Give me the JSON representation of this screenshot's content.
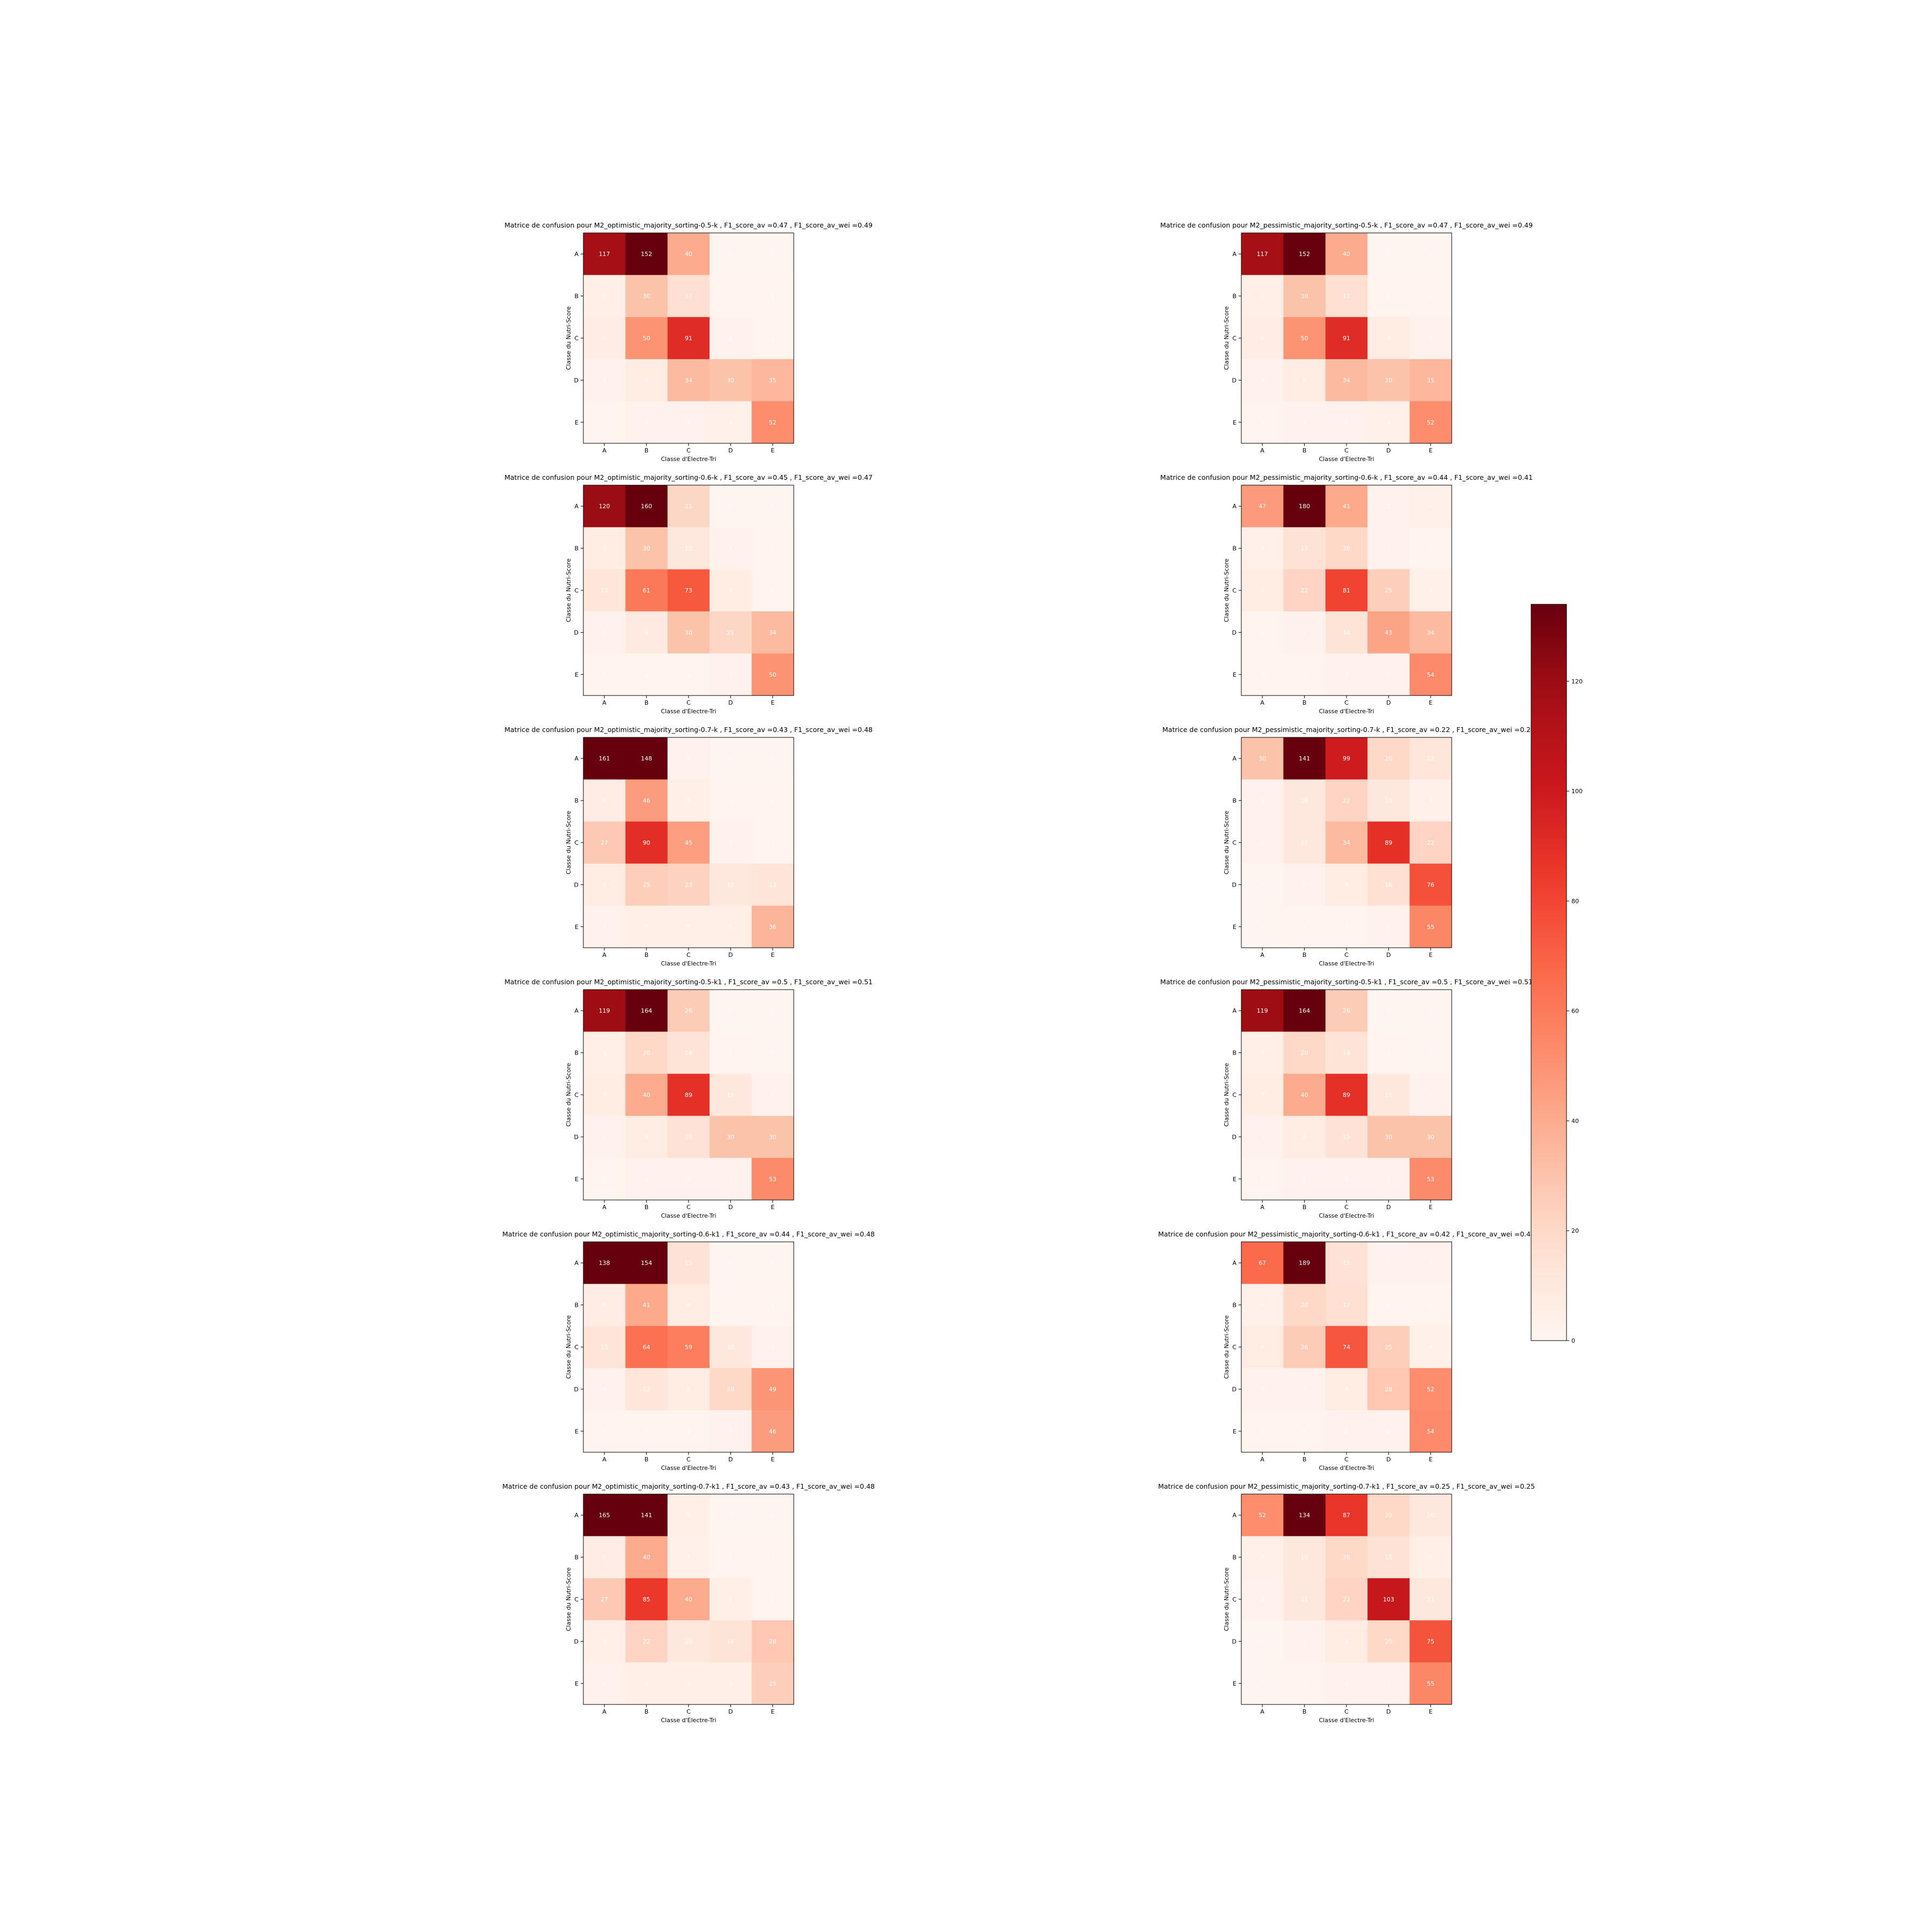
{
  "colorbar": {
    "cmap": "Reds",
    "vmin": 0,
    "vmax": 134,
    "ticks": [
      "0",
      "20",
      "40",
      "60",
      "80",
      "100",
      "120"
    ],
    "tick_values": [
      0,
      20,
      40,
      60,
      80,
      100,
      120
    ]
  },
  "chart_data": [
    {
      "type": "heatmap",
      "title": "Matrice de confusion pour M2_optimistic_majority_sorting-0.5-k , F1_score_av =0.47 , F1_score_av_wei =0.49",
      "xlabel": "Classe d'Electre-Tri",
      "ylabel": "Classe du Nutri-Score",
      "x_categories": [
        "A",
        "B",
        "C",
        "D",
        "E"
      ],
      "y_categories": [
        "A",
        "B",
        "C",
        "D",
        "E"
      ],
      "values": [
        [
          117,
          152,
          40,
          0,
          0
        ],
        [
          5,
          30,
          17,
          1,
          1
        ],
        [
          6,
          50,
          91,
          2,
          1
        ],
        [
          2,
          8,
          34,
          30,
          35
        ],
        [
          1,
          2,
          2,
          4,
          52
        ]
      ]
    },
    {
      "type": "heatmap",
      "title": "Matrice de confusion pour M2_pessimistic_majority_sorting-0.5-k , F1_score_av =0.47 , F1_score_av_wei =0.49",
      "xlabel": "Classe d'Electre-Tri",
      "ylabel": "Classe du Nutri-Score",
      "x_categories": [
        "A",
        "B",
        "C",
        "D",
        "E"
      ],
      "y_categories": [
        "A",
        "B",
        "C",
        "D",
        "E"
      ],
      "values": [
        [
          117,
          152,
          40,
          0,
          0
        ],
        [
          5,
          30,
          17,
          1,
          1
        ],
        [
          6,
          50,
          91,
          8,
          3
        ],
        [
          2,
          8,
          34,
          30,
          35
        ],
        [
          1,
          2,
          2,
          4,
          52
        ]
      ]
    },
    {
      "type": "heatmap",
      "title": "Matrice de confusion pour M2_optimistic_majority_sorting-0.6-k , F1_score_av =0.45 , F1_score_av_wei =0.47",
      "xlabel": "Classe d'Electre-Tri",
      "ylabel": "Classe du Nutri-Score",
      "x_categories": [
        "A",
        "B",
        "C",
        "D",
        "E"
      ],
      "y_categories": [
        "A",
        "B",
        "C",
        "D",
        "E"
      ],
      "values": [
        [
          120,
          160,
          21,
          0,
          0
        ],
        [
          7,
          30,
          10,
          2,
          1
        ],
        [
          12,
          61,
          73,
          7,
          1
        ],
        [
          2,
          9,
          30,
          21,
          34
        ],
        [
          1,
          1,
          1,
          3,
          50
        ]
      ]
    },
    {
      "type": "heatmap",
      "title": "Matrice de confusion pour M2_pessimistic_majority_sorting-0.6-k , F1_score_av =0.44 , F1_score_av_wei =0.41",
      "xlabel": "Classe d'Electre-Tri",
      "ylabel": "Classe du Nutri-Score",
      "x_categories": [
        "A",
        "B",
        "C",
        "D",
        "E"
      ],
      "y_categories": [
        "A",
        "B",
        "C",
        "D",
        "E"
      ],
      "values": [
        [
          47,
          180,
          41,
          2,
          4
        ],
        [
          4,
          15,
          20,
          2,
          1
        ],
        [
          7,
          22,
          81,
          25,
          4
        ],
        [
          1,
          2,
          14,
          43,
          34
        ],
        [
          1,
          1,
          2,
          2,
          54
        ]
      ]
    },
    {
      "type": "heatmap",
      "title": "Matrice de confusion pour M2_optimistic_majority_sorting-0.7-k , F1_score_av =0.43 , F1_score_av_wei =0.48",
      "xlabel": "Classe d'Electre-Tri",
      "ylabel": "Classe du Nutri-Score",
      "x_categories": [
        "A",
        "B",
        "C",
        "D",
        "E"
      ],
      "y_categories": [
        "A",
        "B",
        "C",
        "D",
        "E"
      ],
      "values": [
        [
          161,
          148,
          2,
          0,
          0
        ],
        [
          6,
          46,
          5,
          1,
          1
        ],
        [
          27,
          90,
          45,
          2,
          1
        ],
        [
          8,
          25,
          23,
          10,
          13
        ],
        [
          3,
          5,
          5,
          5,
          36
        ]
      ]
    },
    {
      "type": "heatmap",
      "title": "Matrice de confusion pour M2_pessimistic_majority_sorting-0.7-k , F1_score_av =0.22 , F1_score_av_wei =0.2",
      "xlabel": "Classe d'Electre-Tri",
      "ylabel": "Classe du Nutri-Score",
      "x_categories": [
        "A",
        "B",
        "C",
        "D",
        "E"
      ],
      "y_categories": [
        "A",
        "B",
        "C",
        "D",
        "E"
      ],
      "values": [
        [
          30,
          141,
          99,
          20,
          12
        ],
        [
          3,
          10,
          22,
          10,
          4
        ],
        [
          2,
          11,
          34,
          89,
          22
        ],
        [
          0,
          2,
          8,
          16,
          76
        ],
        [
          0,
          1,
          1,
          2,
          55
        ]
      ]
    },
    {
      "type": "heatmap",
      "title": "Matrice de confusion pour M2_optimistic_majority_sorting-0.5-k1 , F1_score_av =0.5 , F1_score_av_wei =0.51",
      "xlabel": "Classe d'Electre-Tri",
      "ylabel": "Classe du Nutri-Score",
      "x_categories": [
        "A",
        "B",
        "C",
        "D",
        "E"
      ],
      "y_categories": [
        "A",
        "B",
        "C",
        "D",
        "E"
      ],
      "values": [
        [
          119,
          164,
          26,
          0,
          0
        ],
        [
          5,
          20,
          14,
          1,
          0
        ],
        [
          7,
          40,
          89,
          11,
          2
        ],
        [
          3,
          8,
          15,
          30,
          30
        ],
        [
          1,
          2,
          2,
          2,
          53
        ]
      ]
    },
    {
      "type": "heatmap",
      "title": "Matrice de confusion pour M2_pessimistic_majority_sorting-0.5-k1 , F1_score_av =0.5 , F1_score_av_wei =0.51",
      "xlabel": "Classe d'Electre-Tri",
      "ylabel": "Classe du Nutri-Score",
      "x_categories": [
        "A",
        "B",
        "C",
        "D",
        "E"
      ],
      "y_categories": [
        "A",
        "B",
        "C",
        "D",
        "E"
      ],
      "values": [
        [
          119,
          164,
          26,
          0,
          0
        ],
        [
          5,
          20,
          14,
          1,
          0
        ],
        [
          7,
          40,
          89,
          11,
          2
        ],
        [
          3,
          8,
          15,
          30,
          30
        ],
        [
          1,
          2,
          2,
          2,
          53
        ]
      ]
    },
    {
      "type": "heatmap",
      "title": "Matrice de confusion pour M2_optimistic_majority_sorting-0.6-k1 , F1_score_av =0.44 , F1_score_av_wei =0.48",
      "xlabel": "Classe d'Electre-Tri",
      "ylabel": "Classe du Nutri-Score",
      "x_categories": [
        "A",
        "B",
        "C",
        "D",
        "E"
      ],
      "y_categories": [
        "A",
        "B",
        "C",
        "D",
        "E"
      ],
      "values": [
        [
          138,
          154,
          15,
          0,
          0
        ],
        [
          6,
          41,
          8,
          1,
          1
        ],
        [
          13,
          64,
          59,
          10,
          2
        ],
        [
          3,
          12,
          8,
          20,
          49
        ],
        [
          1,
          1,
          1,
          2,
          46
        ]
      ]
    },
    {
      "type": "heatmap",
      "title": "Matrice de confusion pour M2_pessimistic_majority_sorting-0.6-k1 , F1_score_av =0.42 , F1_score_av_wei =0.41",
      "xlabel": "Classe d'Electre-Tri",
      "ylabel": "Classe du Nutri-Score",
      "x_categories": [
        "A",
        "B",
        "C",
        "D",
        "E"
      ],
      "y_categories": [
        "A",
        "B",
        "C",
        "D",
        "E"
      ],
      "values": [
        [
          67,
          189,
          15,
          2,
          3
        ],
        [
          4,
          20,
          17,
          1,
          1
        ],
        [
          8,
          26,
          74,
          25,
          4
        ],
        [
          2,
          3,
          8,
          28,
          52
        ],
        [
          1,
          1,
          2,
          2,
          54
        ]
      ]
    },
    {
      "type": "heatmap",
      "title": "Matrice de confusion pour M2_optimistic_majority_sorting-0.7-k1 , F1_score_av =0.43 , F1_score_av_wei =0.48",
      "xlabel": "Classe d'Electre-Tri",
      "ylabel": "Classe du Nutri-Score",
      "x_categories": [
        "A",
        "B",
        "C",
        "D",
        "E"
      ],
      "y_categories": [
        "A",
        "B",
        "C",
        "D",
        "E"
      ],
      "values": [
        [
          165,
          141,
          5,
          0,
          0
        ],
        [
          6,
          40,
          4,
          1,
          1
        ],
        [
          27,
          85,
          40,
          5,
          1
        ],
        [
          5,
          22,
          10,
          14,
          28
        ],
        [
          2,
          5,
          5,
          5,
          25
        ]
      ]
    },
    {
      "type": "heatmap",
      "title": "Matrice de confusion pour M2_pessimistic_majority_sorting-0.7-k1 , F1_score_av =0.25 , F1_score_av_wei =0.25",
      "xlabel": "Classe d'Electre-Tri",
      "ylabel": "Classe du Nutri-Score",
      "x_categories": [
        "A",
        "B",
        "C",
        "D",
        "E"
      ],
      "y_categories": [
        "A",
        "B",
        "C",
        "D",
        "E"
      ],
      "values": [
        [
          52,
          134,
          87,
          20,
          10
        ],
        [
          4,
          10,
          20,
          15,
          5
        ],
        [
          2,
          11,
          22,
          103,
          11
        ],
        [
          0,
          2,
          8,
          20,
          75
        ],
        [
          0,
          1,
          2,
          3,
          55
        ]
      ]
    }
  ]
}
